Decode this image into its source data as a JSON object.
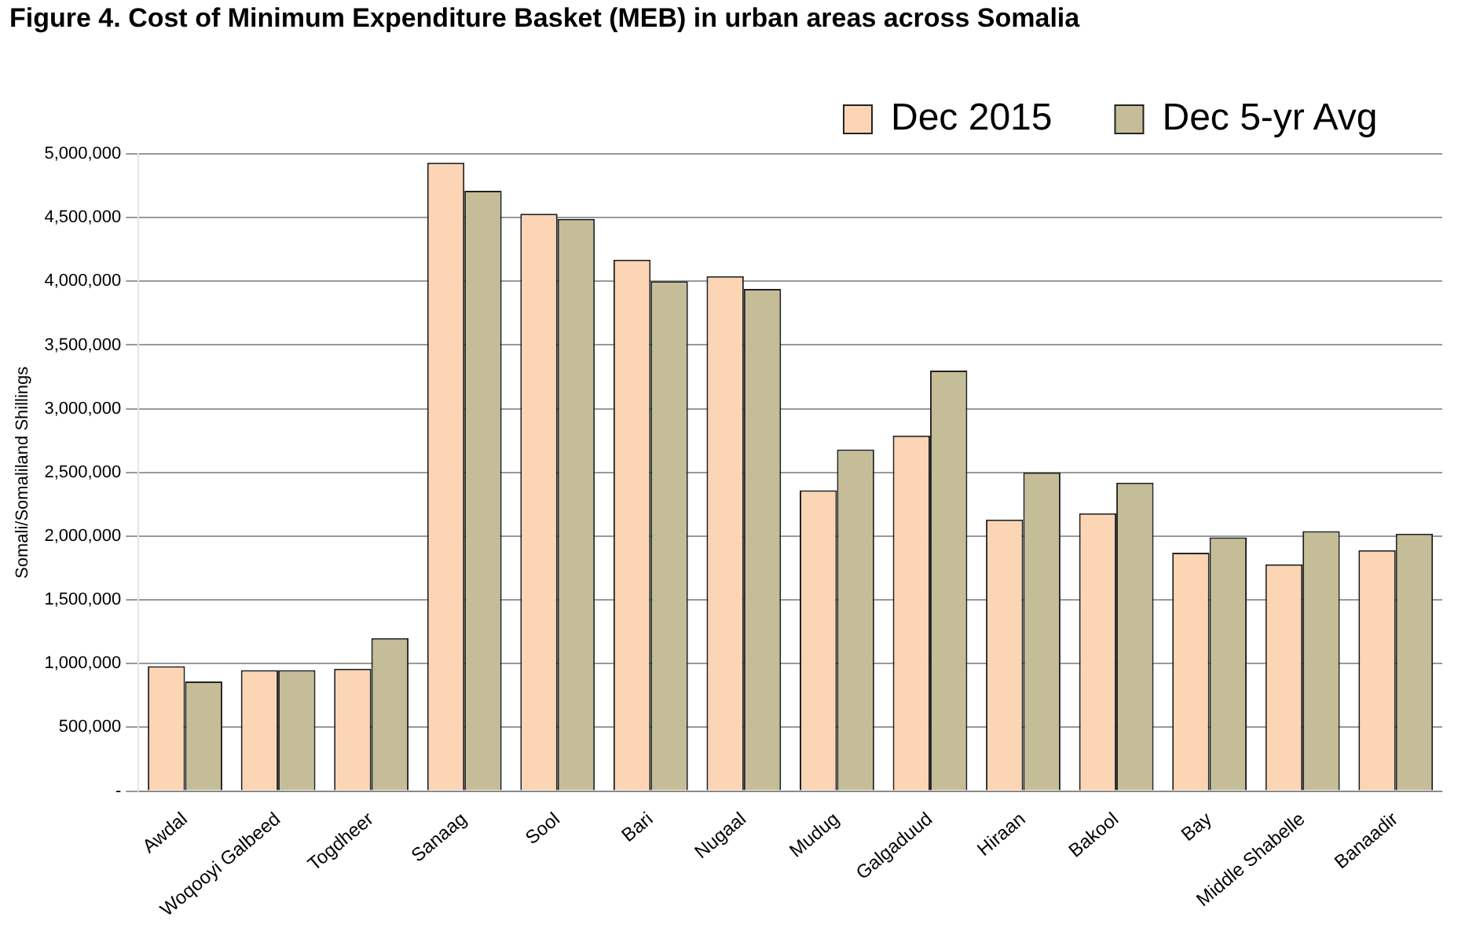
{
  "chart_data": {
    "type": "bar",
    "title": "Figure 4. Cost of Minimum Expenditure Basket (MEB) in urban areas across Somalia",
    "ylabel": "Somali/Somaliland Shillings",
    "categories": [
      "Awdal",
      "Woqooyi Galbeed",
      "Togdheer",
      "Sanaag",
      "Sool",
      "Bari",
      "Nugaal",
      "Mudug",
      "Galgaduud",
      "Hiraan",
      "Bakool",
      "Bay",
      "Middle Shabelle",
      "Banaadir"
    ],
    "series": [
      {
        "name": "Dec 2015",
        "color": "#fcd5b4",
        "values": [
          980000,
          950000,
          960000,
          4930000,
          4530000,
          4170000,
          4040000,
          2360000,
          2790000,
          2130000,
          2180000,
          1870000,
          1780000,
          1890000
        ]
      },
      {
        "name": "Dec 5-yr Avg",
        "color": "#c4bd97",
        "values": [
          860000,
          950000,
          1200000,
          4710000,
          4490000,
          4000000,
          3940000,
          2680000,
          3300000,
          2500000,
          2420000,
          1990000,
          2040000,
          2020000
        ]
      }
    ],
    "ylim": [
      0,
      5000000
    ],
    "yticks": [
      {
        "value": 0,
        "label": "-"
      },
      {
        "value": 500000,
        "label": "500,000"
      },
      {
        "value": 1000000,
        "label": "1,000,000"
      },
      {
        "value": 1500000,
        "label": "1,500,000"
      },
      {
        "value": 2000000,
        "label": "2,000,000"
      },
      {
        "value": 2500000,
        "label": "2,500,000"
      },
      {
        "value": 3000000,
        "label": "3,000,000"
      },
      {
        "value": 3500000,
        "label": "3,500,000"
      },
      {
        "value": 4000000,
        "label": "4,000,000"
      },
      {
        "value": 4500000,
        "label": "4,500,000"
      },
      {
        "value": 5000000,
        "label": "5,000,000"
      }
    ],
    "grid": "y",
    "legend": "top right"
  }
}
